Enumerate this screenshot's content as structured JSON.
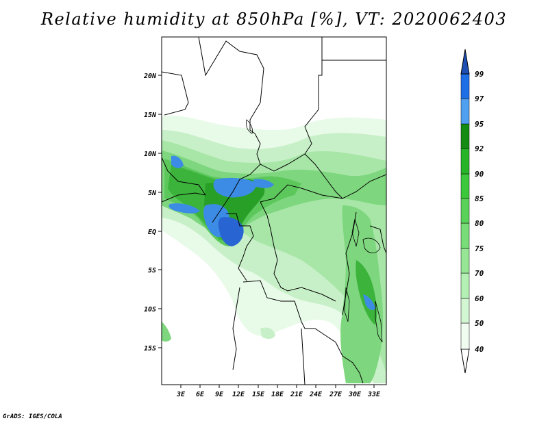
{
  "title": "Relative humidity at 850hPa [%], VT: 2020062403",
  "credit": "GrADS: IGES/COLA",
  "map": {
    "lat_labels": [
      "20N",
      "15N",
      "10N",
      "5N",
      "EQ",
      "5S",
      "10S",
      "15S"
    ],
    "lon_labels": [
      "3E",
      "6E",
      "9E",
      "12E",
      "15E",
      "18E",
      "21E",
      "24E",
      "27E",
      "30E",
      "33E"
    ]
  },
  "colorbar": {
    "levels": [
      "40",
      "50",
      "60",
      "70",
      "75",
      "80",
      "85",
      "90",
      "92",
      "95",
      "97",
      "99"
    ],
    "colors": [
      "#f0fcf0",
      "#d2f5d2",
      "#b4f0b4",
      "#96e696",
      "#78dc78",
      "#5ad25a",
      "#3cc83c",
      "#28b428",
      "#148c14",
      "#50a0f0",
      "#1e6ee6",
      "#1e50b4"
    ]
  }
}
